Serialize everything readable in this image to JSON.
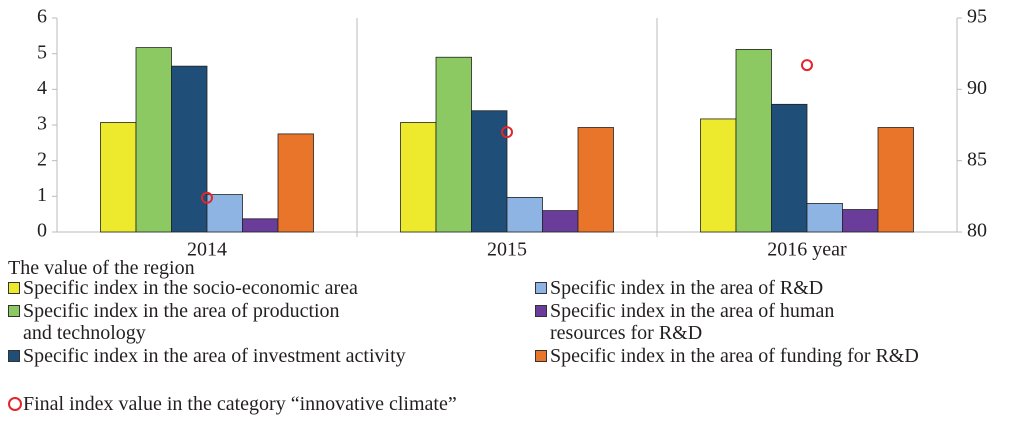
{
  "chart_data": {
    "type": "bar",
    "categories": [
      "2014",
      "2015",
      "2016 year"
    ],
    "ylim": [
      0,
      6
    ],
    "yticks": [
      0,
      1,
      2,
      3,
      4,
      5,
      6
    ],
    "y2lim": [
      80,
      95
    ],
    "y2ticks": [
      80,
      85,
      90,
      95
    ],
    "legend_title": "The value of the region",
    "series": [
      {
        "name": "Specific index in the socio-economic area",
        "color": "#ede92c",
        "values": [
          3.07,
          3.07,
          3.17
        ]
      },
      {
        "name": "Specific index in the area of production\nand technology",
        "color": "#8cc963",
        "values": [
          5.17,
          4.9,
          5.12
        ]
      },
      {
        "name": "Specific index in the area of investment activity",
        "color": "#1f4e79",
        "values": [
          4.65,
          3.4,
          3.58
        ]
      },
      {
        "name": "Specific index in the area of R&D",
        "color": "#8db4e2",
        "values": [
          1.05,
          0.97,
          0.8
        ]
      },
      {
        "name": "Specific index in the area of human\nresources for R&D",
        "color": "#6a3d9a",
        "values": [
          0.37,
          0.6,
          0.63
        ]
      },
      {
        "name": "Specific index in the area of funding for R&D",
        "color": "#e9752a",
        "values": [
          2.75,
          2.93,
          2.93
        ]
      },
      {
        "name": "Final index value in the category “innovative climate”",
        "color": "#e3262b",
        "type": "marker",
        "axis": "y2",
        "values": [
          82.4,
          87.0,
          91.7
        ]
      }
    ]
  }
}
